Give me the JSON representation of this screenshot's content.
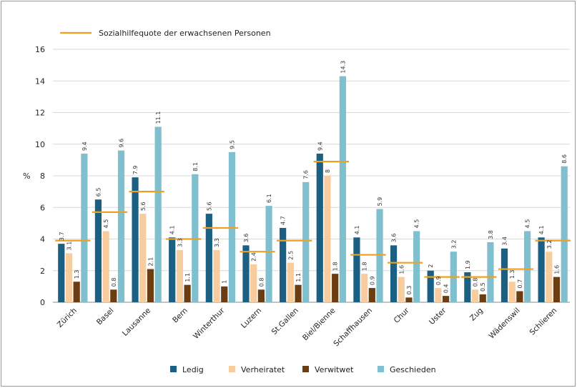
{
  "chart_data": {
    "type": "bar",
    "title": "",
    "xlabel": "",
    "ylabel": "%",
    "ylim": [
      0,
      16
    ],
    "yticks": [
      0,
      2,
      4,
      6,
      8,
      10,
      12,
      14,
      16
    ],
    "grid": true,
    "legend_position": "bottom",
    "categories": [
      "Zürich",
      "Basel",
      "Lausanne",
      "Bern",
      "Winterthur",
      "Luzern",
      "St.Gallen",
      "Biel/Bienne",
      "Schaffhausen",
      "Chur",
      "Uster",
      "Zug",
      "Wädenswil",
      "Schlieren"
    ],
    "series": [
      {
        "name": "Ledig",
        "color": "#1b5f83",
        "values": [
          3.7,
          6.5,
          7.9,
          4.1,
          5.6,
          3.6,
          4.7,
          9.4,
          4.1,
          3.6,
          2.0,
          1.9,
          3.4,
          4.1
        ]
      },
      {
        "name": "Verheiratet",
        "color": "#f7cd9f",
        "values": [
          3.1,
          4.5,
          5.6,
          3.3,
          3.3,
          2.4,
          2.5,
          8.0,
          1.8,
          1.6,
          0.9,
          0.8,
          1.3,
          3.2
        ]
      },
      {
        "name": "Verwitwet",
        "color": "#6b3d12",
        "values": [
          1.3,
          0.8,
          2.1,
          1.1,
          1.0,
          0.8,
          1.1,
          1.8,
          0.9,
          0.3,
          0.4,
          0.5,
          0.7,
          1.6
        ]
      },
      {
        "name": "Geschieden",
        "color": "#80bfce",
        "values": [
          9.4,
          9.6,
          11.1,
          8.1,
          9.5,
          6.1,
          7.6,
          14.3,
          5.9,
          4.5,
          3.2,
          3.8,
          4.5,
          8.6
        ]
      }
    ],
    "line_series": {
      "name": "Sozialhilfequote der erwachsenen Personen",
      "color": "#f0a020",
      "values": [
        3.9,
        5.7,
        7.0,
        4.0,
        4.7,
        3.2,
        3.9,
        8.9,
        3.0,
        2.5,
        1.6,
        1.6,
        2.1,
        3.9
      ]
    }
  }
}
